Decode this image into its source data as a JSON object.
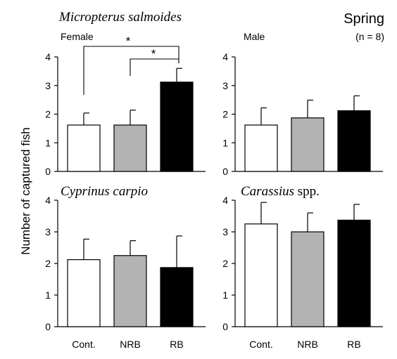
{
  "figure": {
    "season": "Spring",
    "sample_size": "(n = 8)",
    "ylabel": "Number of captured fish"
  },
  "colors": {
    "Cont.": "#ffffff",
    "NRB": "#b3b3b3",
    "RB": "#000000"
  },
  "chart_data": [
    {
      "type": "bar",
      "title_italic": "Micropterus salmoides",
      "title_roman": "",
      "subtitle": "Female",
      "categories": [
        "Cont.",
        "NRB",
        "RB"
      ],
      "values": [
        1.62,
        1.62,
        3.12
      ],
      "errors": [
        0.42,
        0.52,
        0.48
      ],
      "ylim": [
        0,
        4
      ],
      "yticks": [
        "0",
        "1",
        "2",
        "3",
        "4"
      ],
      "show_xticklabels": false,
      "significance": [
        {
          "from": "Cont.",
          "to": "RB",
          "label": "*"
        },
        {
          "from": "NRB",
          "to": "RB",
          "label": "*"
        }
      ]
    },
    {
      "type": "bar",
      "title_italic": "",
      "title_roman": "",
      "subtitle": "Male",
      "categories": [
        "Cont.",
        "NRB",
        "RB"
      ],
      "values": [
        1.62,
        1.87,
        2.12
      ],
      "errors": [
        0.6,
        0.62,
        0.52
      ],
      "ylim": [
        0,
        4
      ],
      "yticks": [
        "0",
        "1",
        "2",
        "3",
        "4"
      ],
      "show_xticklabels": false,
      "significance": []
    },
    {
      "type": "bar",
      "title_italic": "Cyprinus carpio",
      "title_roman": "",
      "subtitle": "",
      "categories": [
        "Cont.",
        "NRB",
        "RB"
      ],
      "values": [
        2.12,
        2.25,
        1.87
      ],
      "errors": [
        0.65,
        0.47,
        1.0
      ],
      "ylim": [
        0,
        4
      ],
      "yticks": [
        "0",
        "1",
        "2",
        "3",
        "4"
      ],
      "show_xticklabels": true,
      "significance": []
    },
    {
      "type": "bar",
      "title_italic": "Carassius",
      "title_roman": " spp.",
      "subtitle": "",
      "categories": [
        "Cont.",
        "NRB",
        "RB"
      ],
      "values": [
        3.25,
        3.0,
        3.37
      ],
      "errors": [
        0.68,
        0.6,
        0.5
      ],
      "ylim": [
        0,
        4
      ],
      "yticks": [
        "0",
        "1",
        "2",
        "3",
        "4"
      ],
      "show_xticklabels": true,
      "significance": []
    }
  ]
}
